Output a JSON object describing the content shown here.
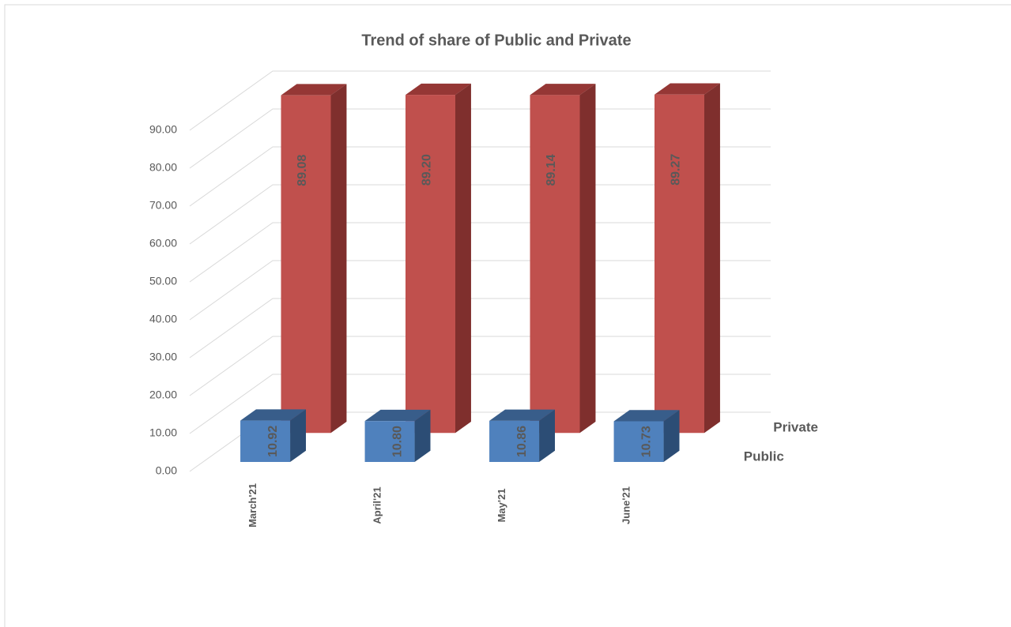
{
  "chart_data": {
    "type": "bar3d",
    "title": "Trend of  share of Public and Private",
    "categories": [
      "March'21",
      "April'21",
      "May'21",
      "June'21"
    ],
    "series": [
      {
        "name": "Public",
        "color": "#4f81bd",
        "values": [
          10.92,
          10.8,
          10.86,
          10.73
        ],
        "value_labels": [
          "10.92",
          "10.80",
          "10.86",
          "10.73"
        ]
      },
      {
        "name": "Private",
        "color": "#c0504d",
        "values": [
          89.08,
          89.2,
          89.14,
          89.27
        ],
        "value_labels": [
          "89.08",
          "89.20",
          "89.14",
          "89.27"
        ]
      }
    ],
    "ylim": [
      0,
      90
    ],
    "yticks": [
      {
        "value": 0,
        "label": "0.00"
      },
      {
        "value": 10,
        "label": "10.00"
      },
      {
        "value": 20,
        "label": "20.00"
      },
      {
        "value": 30,
        "label": "30.00"
      },
      {
        "value": 40,
        "label": "40.00"
      },
      {
        "value": 50,
        "label": "50.00"
      },
      {
        "value": 60,
        "label": "60.00"
      },
      {
        "value": 70,
        "label": "70.00"
      },
      {
        "value": 80,
        "label": "80.00"
      },
      {
        "value": 90,
        "label": "90.00"
      }
    ],
    "grid": true
  }
}
